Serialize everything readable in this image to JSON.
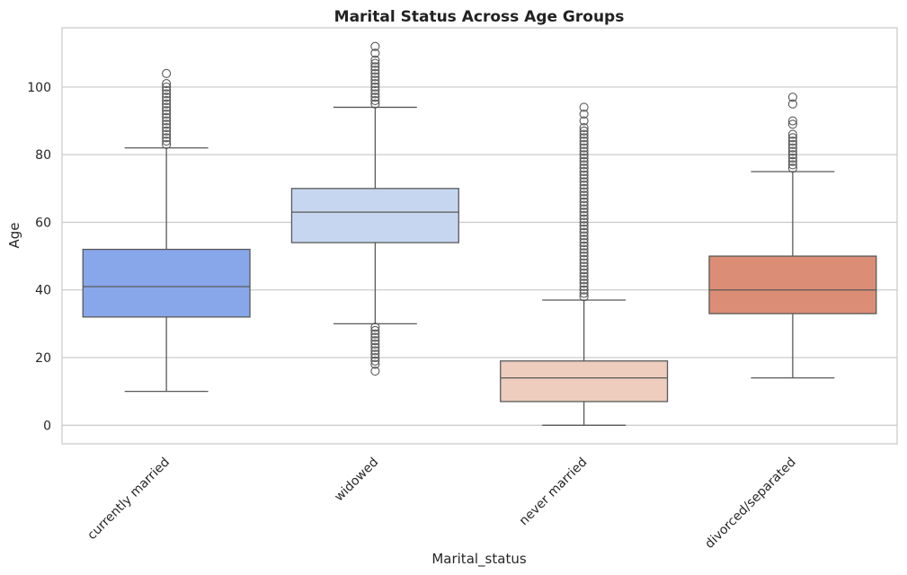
{
  "chart_data": {
    "type": "box",
    "title": "Marital Status Across Age Groups",
    "xlabel": "Marital_status",
    "ylabel": "Age",
    "ylim": [
      -5.5,
      117.5
    ],
    "yticks": [
      0,
      20,
      40,
      60,
      80,
      100
    ],
    "grid": true,
    "categories": [
      "currently married",
      "widowed",
      "never married",
      "divorced/separated"
    ],
    "colors": [
      "#88a6ea",
      "#c6d6f0",
      "#eecdbe",
      "#dc8d75"
    ],
    "line_color": "#595959",
    "frame_color": "#cccccc",
    "grid_color": "#cccccc",
    "boxes": [
      {
        "category": "currently married",
        "whisker_low": 10,
        "q1": 32,
        "median": 41,
        "q3": 52,
        "whisker_high": 82,
        "outliers": [
          83,
          84,
          85,
          86,
          87,
          88,
          89,
          90,
          91,
          92,
          93,
          94,
          95,
          96,
          97,
          98,
          99,
          100,
          101,
          104
        ]
      },
      {
        "category": "widowed",
        "whisker_low": 30,
        "q1": 54,
        "median": 63,
        "q3": 70,
        "whisker_high": 94,
        "outliers": [
          16,
          18,
          19,
          20,
          21,
          22,
          23,
          24,
          25,
          26,
          27,
          28,
          29,
          95,
          96,
          97,
          98,
          99,
          100,
          101,
          102,
          103,
          104,
          105,
          106,
          107,
          108,
          110,
          112
        ]
      },
      {
        "category": "never married",
        "whisker_low": 0,
        "q1": 7,
        "median": 14,
        "q3": 19,
        "whisker_high": 37,
        "outliers": [
          38,
          39,
          40,
          41,
          42,
          43,
          44,
          45,
          46,
          47,
          48,
          49,
          50,
          51,
          52,
          53,
          54,
          55,
          56,
          57,
          58,
          59,
          60,
          61,
          62,
          63,
          64,
          65,
          66,
          67,
          68,
          69,
          70,
          71,
          72,
          73,
          74,
          75,
          76,
          77,
          78,
          79,
          80,
          81,
          82,
          83,
          84,
          85,
          86,
          87,
          88,
          90,
          92,
          94
        ]
      },
      {
        "category": "divorced/separated",
        "whisker_low": 14,
        "q1": 33,
        "median": 40,
        "q3": 50,
        "whisker_high": 75,
        "outliers": [
          76,
          77,
          78,
          79,
          80,
          81,
          82,
          83,
          84,
          85,
          86,
          89,
          90,
          95,
          97
        ]
      }
    ]
  }
}
